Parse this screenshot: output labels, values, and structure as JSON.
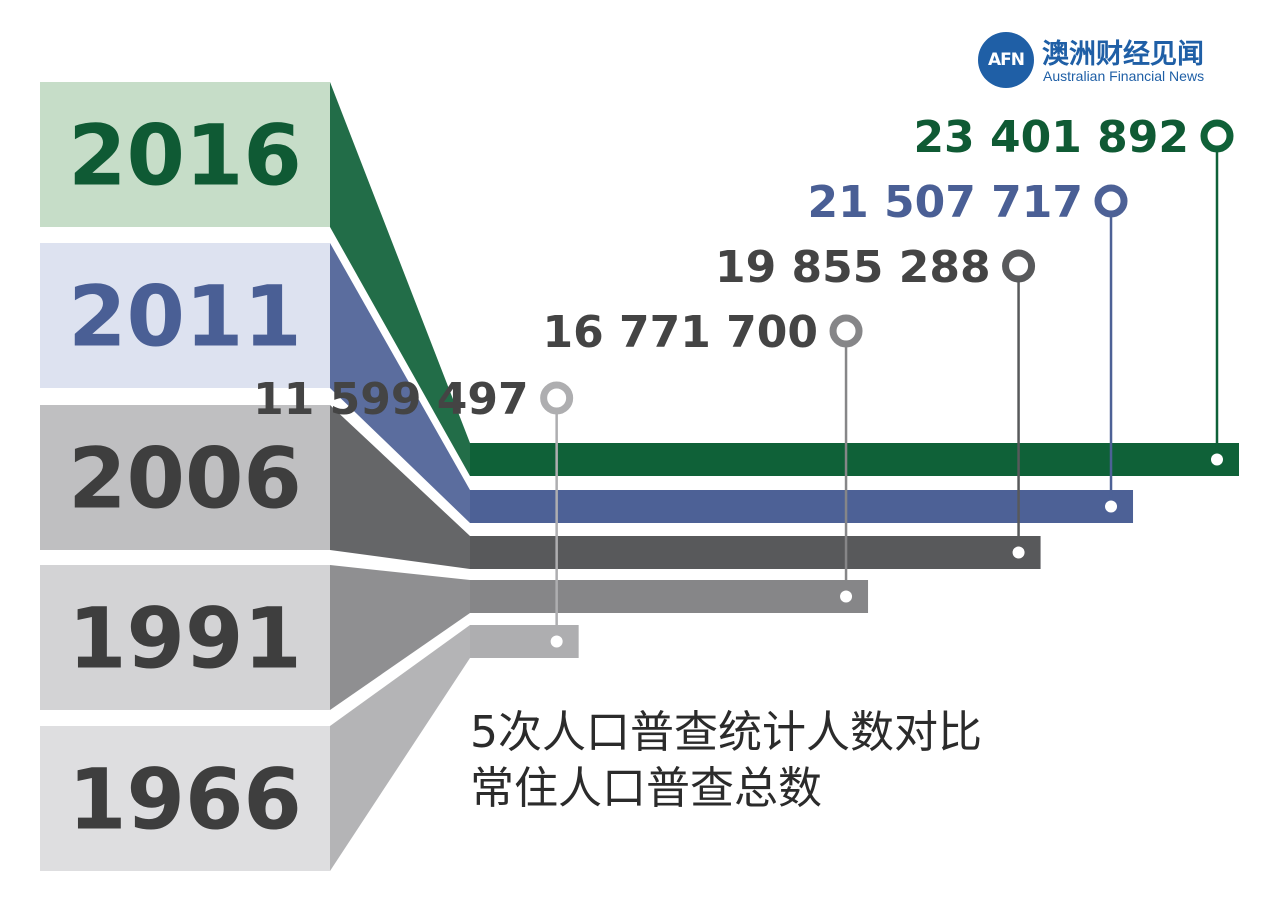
{
  "logo": {
    "mark": "AFN",
    "name_cn": "澳洲财经见闻",
    "name_en": "Australian Financial News"
  },
  "caption": {
    "line1": "5次人口普查统计人数对比",
    "line2": "常住人口普查总数"
  },
  "chart_data": {
    "type": "bar",
    "orientation": "horizontal",
    "categories": [
      "2016",
      "2011",
      "2006",
      "1991",
      "1966"
    ],
    "values": [
      23401892,
      21507717,
      19855288,
      16771700,
      11599497
    ],
    "value_labels": [
      "23 401 892",
      "21 507 717",
      "19 855 288",
      "16 771 700",
      "11 599 497"
    ],
    "colors": {
      "2016": "#0f6138",
      "2011": "#4d6196",
      "2006": "#58595b",
      "1991": "#868688",
      "1966": "#aeaeb0"
    },
    "label_colors": {
      "2016": "#0f5a34",
      "2011": "#4a5f95",
      "2006": "#3e3e3e",
      "1991": "#3e3e3e",
      "1966": "#3e3e3e"
    },
    "panel_colors": {
      "2016": "#c6ddc8",
      "2011": "#dde2f0",
      "2006": "#bfbfc1",
      "1991": "#d3d3d5",
      "1966": "#dedee0"
    },
    "value_label_colors": {
      "2016": "#0f5a34",
      "2011": "#4a5f95",
      "2006": "#444444",
      "1991": "#444444",
      "1966": "#444444"
    },
    "marker_colors": {
      "2016": "#0f6138",
      "2011": "#4d6196",
      "2006": "#58595b",
      "1991": "#868688",
      "1966": "#aeaeb0"
    },
    "grid": false
  }
}
